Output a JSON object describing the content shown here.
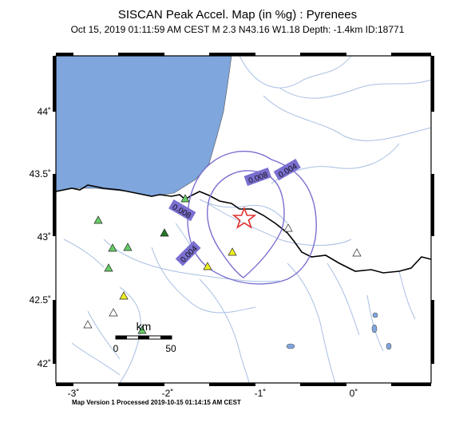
{
  "map": {
    "title": "SISCAN Peak Accel. Map (in %g) : Pyrenees",
    "subtitle": "Oct 15, 2019 01:11:59 AM CEST   M 2.3   N43.16 W1.18   Depth: -1.4km   ID:18771",
    "footer": "Map Version 1 Processed 2019-10-15 01:14:15 AM CEST",
    "lat_ticks": [
      "44˚",
      "43.5˚",
      "43˚",
      "42.5˚",
      "42˚"
    ],
    "lon_ticks": [
      "-3˚",
      "-2˚",
      "-1˚",
      "0˚"
    ],
    "contour_labels": [
      "0.004",
      "0.008",
      "0.008",
      "0.004"
    ],
    "scalebar": {
      "unit": "km",
      "min": "0",
      "max": "50"
    },
    "colors": {
      "sea": "#7fa6dd",
      "land": "#ffffff",
      "contour": "#7a6fd0",
      "river": "#a8bfe3",
      "border": "#000000",
      "epicenter": "#e03030"
    }
  }
}
